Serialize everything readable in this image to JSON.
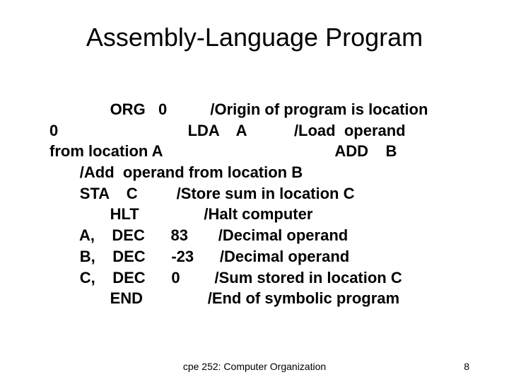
{
  "title": "Assembly-Language Program",
  "code_lines": [
    "              ORG   0          /Origin of program is location",
    "0                              LDA    A           /Load  operand",
    "from location A                                        ADD    B",
    "       /Add  operand from location B",
    "       STA    C         /Store sum in location C",
    "              HLT               /Halt computer",
    "       A,    DEC      83       /Decimal operand",
    "       B,    DEC      -23      /Decimal operand",
    "       C,    DEC      0        /Sum stored in location C",
    "              END               /End of symbolic program"
  ],
  "footer": {
    "center": "cpe 252: Computer Organization",
    "page": "8"
  },
  "colors": {
    "bg": "#ffffff",
    "text": "#000000"
  },
  "fonts": {
    "title_size": 36,
    "body_size": 22,
    "footer_size": 14,
    "body_weight": "bold"
  }
}
